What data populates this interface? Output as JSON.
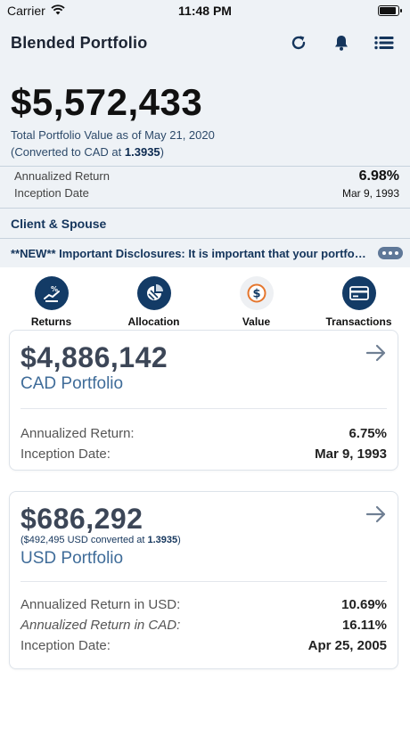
{
  "status": {
    "carrier": "Carrier",
    "time": "11:48 PM",
    "battery_level": 0.9
  },
  "header": {
    "title": "Blended Portfolio",
    "icons": [
      "refresh-icon",
      "bell-icon",
      "menu-list-icon"
    ]
  },
  "summary": {
    "total_value": "$5,572,433",
    "as_of_text": "Total Portfolio Value as of May 21, 2020",
    "converted_prefix": "(Converted to CAD at ",
    "converted_rate": "1.3935",
    "converted_suffix": ")",
    "annualized_return_label": "Annualized Return",
    "annualized_return_value": "6.98%",
    "inception_date_label": "Inception Date",
    "inception_date_value": "Mar 9, 1993"
  },
  "client": {
    "label": "Client & Spouse"
  },
  "disclosure": {
    "text": "**NEW** Important Disclosures:  It is important that your portfolio"
  },
  "nav": [
    {
      "label": "Returns",
      "icon": "returns-icon"
    },
    {
      "label": "Allocation",
      "icon": "allocation-pie-icon"
    },
    {
      "label": "Value",
      "icon": "dollar-coin-icon"
    },
    {
      "label": "Transactions",
      "icon": "credit-card-icon"
    }
  ],
  "cad_card": {
    "amount": "$4,886,142",
    "title": "CAD Portfolio",
    "rows": [
      {
        "label": "Annualized Return:",
        "value": "6.75%"
      },
      {
        "label": "Inception Date:",
        "value": "Mar 9, 1993"
      }
    ]
  },
  "usd_card": {
    "amount": "$686,292",
    "note_prefix": "($492,495 USD converted at ",
    "note_rate": "1.3935",
    "note_suffix": ")",
    "title": "USD Portfolio",
    "rows": [
      {
        "label": "Annualized Return in USD:",
        "value": "10.69%"
      },
      {
        "label": "Annualized Return in CAD:",
        "value": "16.11%"
      },
      {
        "label": "Inception Date:",
        "value": "Apr 25, 2005"
      }
    ]
  }
}
